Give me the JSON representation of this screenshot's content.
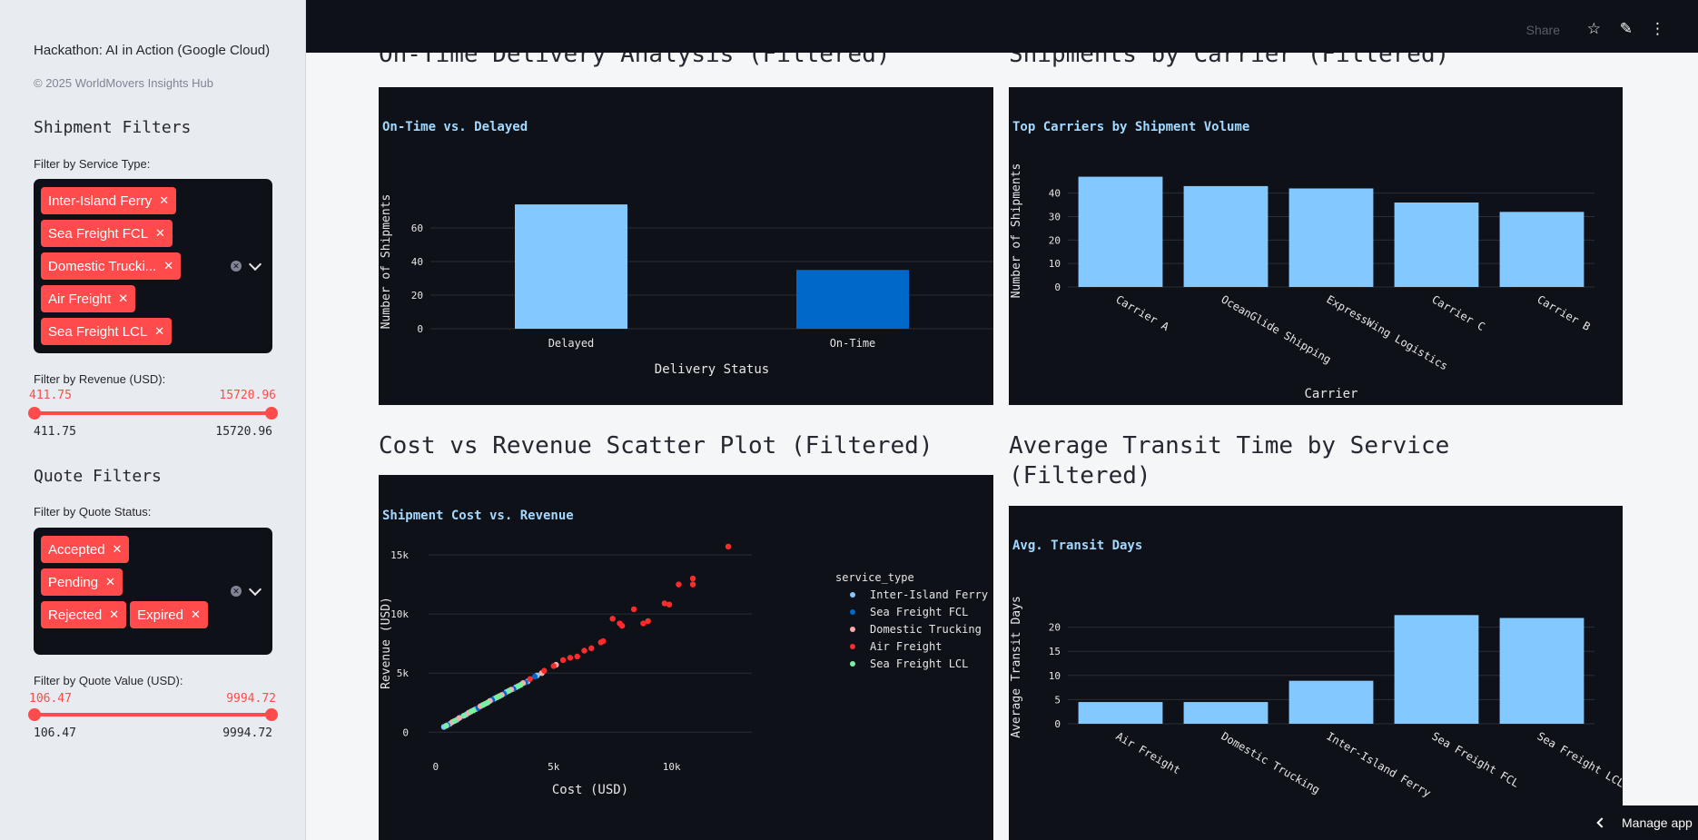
{
  "sidebar": {
    "title": "Hackathon: AI in Action (Google Cloud)",
    "copyright": "© 2025 WorldMovers Insights Hub",
    "shipment_filters": {
      "heading": "Shipment Filters",
      "service_label": "Filter by Service Type:",
      "service_tags": [
        "Inter-Island Ferry",
        "Sea Freight FCL",
        "Domestic Trucki...",
        "Air Freight",
        "Sea Freight LCL"
      ],
      "revenue_label": "Filter by Revenue (USD):",
      "revenue_min": "411.75",
      "revenue_max": "15720.96"
    },
    "quote_filters": {
      "heading": "Quote Filters",
      "status_label": "Filter by Quote Status:",
      "status_tags": [
        "Accepted",
        "Pending",
        "Rejected",
        "Expired"
      ],
      "value_label": "Filter by Quote Value (USD):",
      "value_min": "106.47",
      "value_max": "9994.72"
    }
  },
  "header": {
    "share": "Share",
    "icons": [
      "star-icon",
      "pencil-icon",
      "kebab-menu-icon"
    ]
  },
  "sections": {
    "ontime": "On-Time Delivery Analysis (Filtered)",
    "carrier": "Shipments by Carrier (Filtered)",
    "scatter": "Cost vs Revenue Scatter Plot (Filtered)",
    "transit_line1": "Average Transit Time by Service",
    "transit_line2": "(Filtered)"
  },
  "manage_app": "Manage app",
  "colors": {
    "bar_light": "#83c9ff",
    "bar_dark": "#0068c9",
    "accent": "#ff4b4b",
    "panel_bg": "#0e1117",
    "title_color": "#a3d8ff"
  },
  "chart_data": [
    {
      "type": "bar",
      "title": "On-Time vs. Delayed",
      "xlabel": "Delivery Status",
      "ylabel": "Number of Shipments",
      "categories": [
        "Delayed",
        "On-Time"
      ],
      "values": [
        74,
        35
      ],
      "ylim": [
        0,
        80
      ],
      "yticks": [
        0,
        20,
        40,
        60
      ],
      "grid": true
    },
    {
      "type": "bar",
      "title": "Top Carriers by Shipment Volume",
      "xlabel": "Carrier",
      "ylabel": "Number of Shipments",
      "categories": [
        "Carrier A",
        "OceanGlide Shipping",
        "ExpressWing Logistics",
        "Carrier C",
        "Carrier B"
      ],
      "values": [
        47,
        43,
        42,
        36,
        32
      ],
      "ylim": [
        0,
        48
      ],
      "yticks": [
        0,
        10,
        20,
        30,
        40
      ],
      "grid": true
    },
    {
      "type": "scatter",
      "title": "Shipment Cost vs. Revenue",
      "xlabel": "Cost (USD)",
      "ylabel": "Revenue (USD)",
      "xlim": [
        -300,
        13400
      ],
      "ylim": [
        -900,
        16000
      ],
      "xticks": [
        {
          "v": 0,
          "label": "0"
        },
        {
          "v": 5000,
          "label": "5k"
        },
        {
          "v": 10000,
          "label": "10k"
        }
      ],
      "yticks": [
        {
          "v": 0,
          "label": "0"
        },
        {
          "v": 5000,
          "label": "5k"
        },
        {
          "v": 10000,
          "label": "10k"
        },
        {
          "v": 15000,
          "label": "15k"
        }
      ],
      "legend_title": "service_type",
      "legend_position": "right",
      "series": [
        {
          "name": "Inter-Island Ferry",
          "color": "#83c9ff",
          "points": [
            [
              350,
              450
            ],
            [
              600,
              700
            ],
            [
              900,
              1050
            ],
            [
              1300,
              1500
            ],
            [
              1700,
              1950
            ],
            [
              2100,
              2400
            ],
            [
              2500,
              2850
            ],
            [
              3000,
              3400
            ],
            [
              3400,
              3800
            ],
            [
              3900,
              4300
            ],
            [
              4300,
              4800
            ]
          ]
        },
        {
          "name": "Sea Freight FCL",
          "color": "#0068c9",
          "points": [
            [
              500,
              600
            ],
            [
              1100,
              1300
            ],
            [
              1800,
              2050
            ],
            [
              2400,
              2750
            ],
            [
              2900,
              3250
            ],
            [
              3300,
              3650
            ],
            [
              3800,
              4200
            ],
            [
              4200,
              4700
            ]
          ]
        },
        {
          "name": "Domestic Trucking",
          "color": "#ffabab",
          "points": [
            [
              700,
              850
            ],
            [
              1000,
              1200
            ],
            [
              1400,
              1650
            ],
            [
              1900,
              2200
            ],
            [
              2300,
              2650
            ],
            [
              2800,
              3150
            ],
            [
              3200,
              3600
            ],
            [
              3700,
              4150
            ],
            [
              4500,
              5000
            ],
            [
              5100,
              5700
            ]
          ]
        },
        {
          "name": "Air Freight",
          "color": "#ff2b2b",
          "points": [
            [
              4000,
              4500
            ],
            [
              4600,
              5200
            ],
            [
              5000,
              5600
            ],
            [
              5400,
              6100
            ],
            [
              5700,
              6300
            ],
            [
              6000,
              6400
            ],
            [
              6300,
              6900
            ],
            [
              6600,
              7100
            ],
            [
              7000,
              7600
            ],
            [
              7100,
              7700
            ],
            [
              7500,
              9600
            ],
            [
              7800,
              9200
            ],
            [
              7900,
              9000
            ],
            [
              8400,
              10400
            ],
            [
              8800,
              9200
            ],
            [
              9000,
              9400
            ],
            [
              9700,
              10900
            ],
            [
              9900,
              10800
            ],
            [
              10300,
              12500
            ],
            [
              10900,
              12500
            ],
            [
              10900,
              13000
            ],
            [
              12400,
              15700
            ]
          ]
        },
        {
          "name": "Sea Freight LCL",
          "color": "#7defa1",
          "points": [
            [
              450,
              550
            ],
            [
              800,
              950
            ],
            [
              1200,
              1400
            ],
            [
              1500,
              1750
            ],
            [
              1600,
              1850
            ],
            [
              2000,
              2300
            ],
            [
              2200,
              2500
            ],
            [
              2600,
              2950
            ],
            [
              2700,
              3050
            ],
            [
              3100,
              3500
            ],
            [
              3500,
              3900
            ],
            [
              3600,
              4000
            ]
          ]
        }
      ]
    },
    {
      "type": "bar",
      "title": "Avg. Transit Days",
      "xlabel": "",
      "ylabel": "Average Transit Days",
      "categories": [
        "Air Freight",
        "Domestic Trucking",
        "Inter-Island Ferry",
        "Sea Freight FCL",
        "Sea Freight LCL"
      ],
      "values": [
        4.5,
        4.5,
        8.9,
        22.5,
        21.9
      ],
      "ylim": [
        0,
        23.5
      ],
      "yticks": [
        0,
        5,
        10,
        15,
        20
      ],
      "grid": true
    }
  ]
}
